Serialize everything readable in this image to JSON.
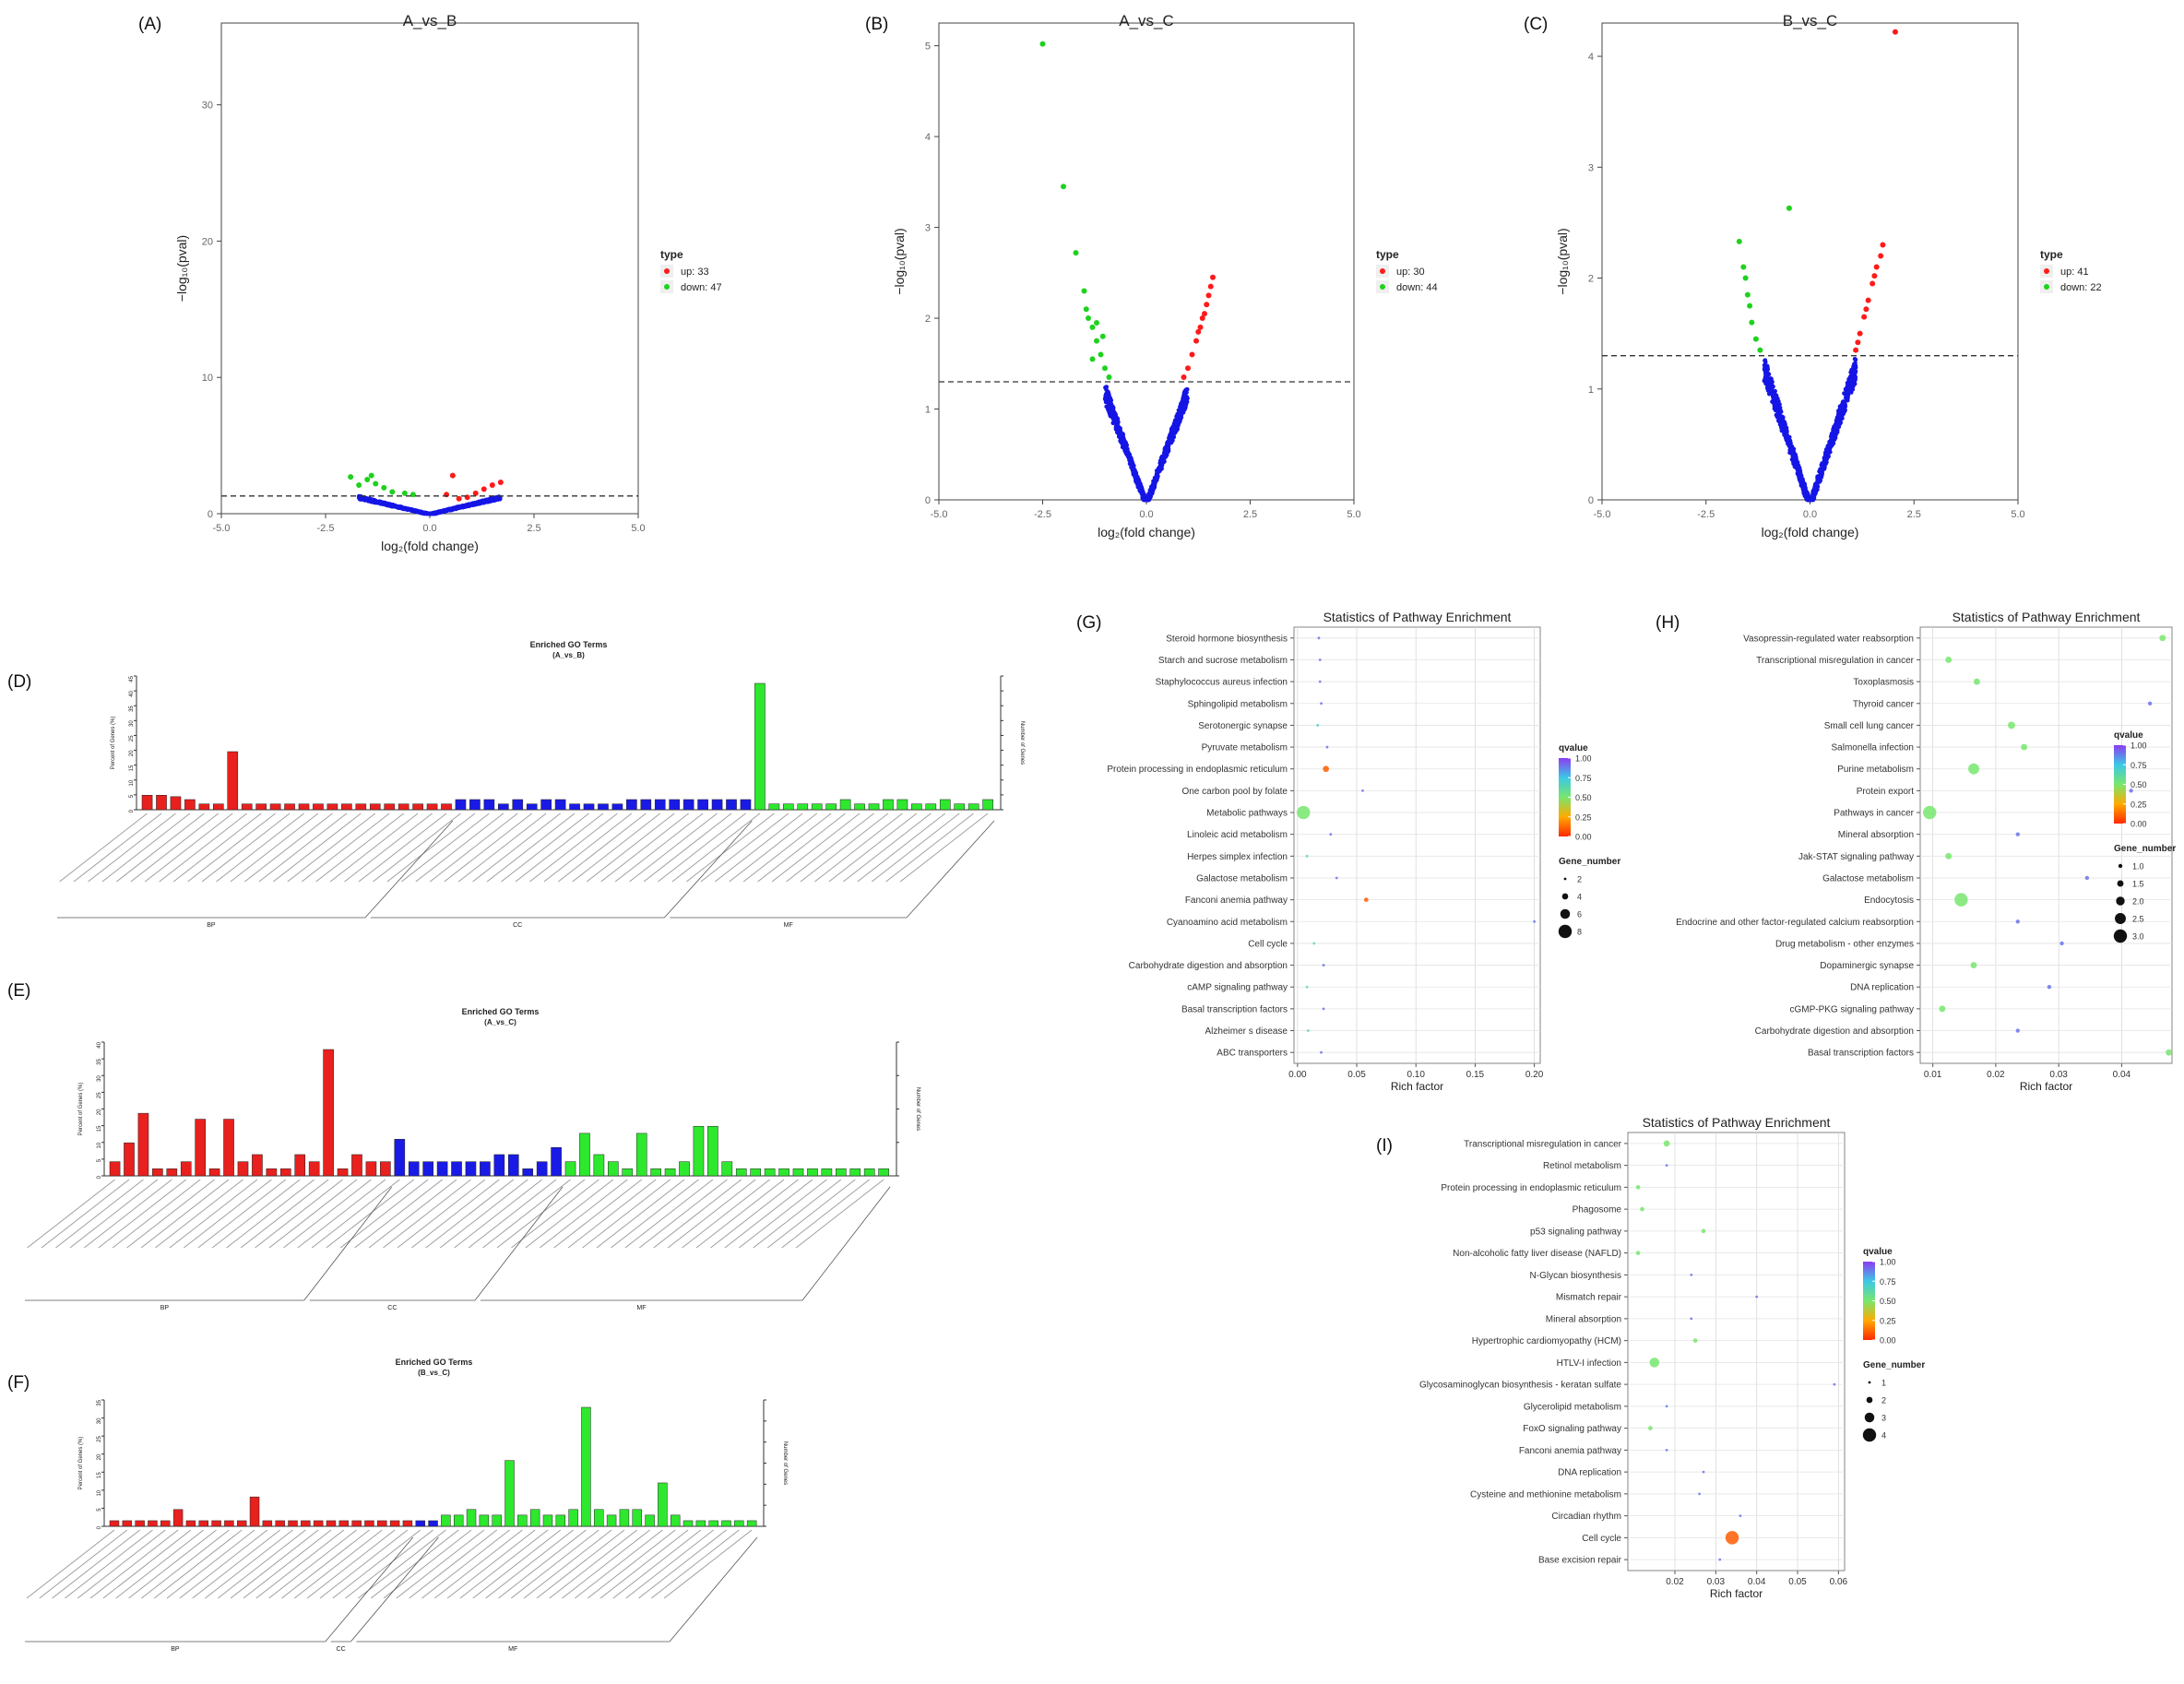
{
  "colors": {
    "up": "#ff1a1a",
    "down": "#1ed21e",
    "nosig": "#1515e6",
    "bp": "#e8201e",
    "cc": "#1a1ae6",
    "mf": "#2ee82e",
    "q_low": "#ff2a00",
    "q_mid": "#33e08f",
    "q_high": "#8b3cf0"
  },
  "chart_data": [
    {
      "id": "A",
      "panel_label": "(A)",
      "type": "scatter",
      "title": "A_vs_B",
      "xlabel": "log₂(fold change)",
      "ylabel": "−log₁₀(pval)",
      "xlim": [
        -5,
        5
      ],
      "ylim": [
        0,
        36
      ],
      "xticks": [
        "-5.0",
        "-2.5",
        "0.0",
        "2.5",
        "5.0"
      ],
      "yticks": [
        "0",
        "10",
        "20",
        "30"
      ],
      "threshold": 1.3,
      "legend": {
        "title": "type",
        "items": [
          "up: 33",
          "down: 47"
        ]
      },
      "up_points": [
        [
          0.4,
          1.4
        ],
        [
          0.7,
          1.1
        ],
        [
          0.9,
          1.2
        ],
        [
          1.1,
          1.5
        ],
        [
          1.3,
          1.8
        ],
        [
          1.5,
          2.1
        ],
        [
          1.7,
          2.3
        ],
        [
          0.55,
          2.8
        ]
      ],
      "down_points": [
        [
          -1.9,
          2.7
        ],
        [
          -1.5,
          2.5
        ],
        [
          -1.3,
          2.2
        ],
        [
          -1.1,
          1.9
        ],
        [
          -0.9,
          1.6
        ],
        [
          -0.6,
          1.5
        ],
        [
          -0.4,
          1.4
        ],
        [
          -1.4,
          2.8
        ],
        [
          -1.7,
          2.1
        ]
      ],
      "vshape": {
        "xmax": 1.7,
        "ymax": 1.3
      }
    },
    {
      "id": "B",
      "panel_label": "(B)",
      "type": "scatter",
      "title": "A_vs_C",
      "xlabel": "log₂(fold change)",
      "ylabel": "−log₁₀(pval)",
      "xlim": [
        -5,
        5
      ],
      "ylim": [
        0,
        5.25
      ],
      "xticks": [
        "-5.0",
        "-2.5",
        "0.0",
        "2.5",
        "5.0"
      ],
      "yticks": [
        "0",
        "1",
        "2",
        "3",
        "4",
        "5"
      ],
      "threshold": 1.3,
      "legend": {
        "title": "type",
        "items": [
          "up: 30",
          "down: 44"
        ]
      },
      "up_points": [
        [
          0.9,
          1.35
        ],
        [
          1.0,
          1.45
        ],
        [
          1.1,
          1.6
        ],
        [
          1.2,
          1.75
        ],
        [
          1.3,
          1.9
        ],
        [
          1.35,
          2.0
        ],
        [
          1.45,
          2.15
        ],
        [
          1.5,
          2.25
        ],
        [
          1.55,
          2.35
        ],
        [
          1.6,
          2.45
        ],
        [
          1.25,
          1.85
        ],
        [
          1.4,
          2.05
        ]
      ],
      "down_points": [
        [
          -2.5,
          5.02
        ],
        [
          -2.0,
          3.45
        ],
        [
          -1.7,
          2.72
        ],
        [
          -1.5,
          2.3
        ],
        [
          -1.45,
          2.1
        ],
        [
          -1.4,
          2.0
        ],
        [
          -1.3,
          1.9
        ],
        [
          -1.2,
          1.75
        ],
        [
          -1.1,
          1.6
        ],
        [
          -1.0,
          1.45
        ],
        [
          -0.9,
          1.35
        ],
        [
          -1.2,
          1.95
        ],
        [
          -1.05,
          1.8
        ],
        [
          -1.3,
          1.55
        ]
      ],
      "vshape": {
        "xmax": 1.0,
        "ymax": 1.3
      }
    },
    {
      "id": "C",
      "panel_label": "(C)",
      "type": "scatter",
      "title": "B_vs_C",
      "xlabel": "log₂(fold change)",
      "ylabel": "−log₁₀(pval)",
      "xlim": [
        -5,
        5
      ],
      "ylim": [
        0,
        4.3
      ],
      "xticks": [
        "-5.0",
        "-2.5",
        "0.0",
        "2.5",
        "5.0"
      ],
      "yticks": [
        "0",
        "1",
        "2",
        "3",
        "4"
      ],
      "threshold": 1.3,
      "legend": {
        "title": "type",
        "items": [
          "up: 41",
          "down: 22"
        ]
      },
      "up_points": [
        [
          2.05,
          4.22
        ],
        [
          1.1,
          1.35
        ],
        [
          1.2,
          1.5
        ],
        [
          1.3,
          1.65
        ],
        [
          1.4,
          1.8
        ],
        [
          1.5,
          1.95
        ],
        [
          1.6,
          2.1
        ],
        [
          1.7,
          2.2
        ],
        [
          1.75,
          2.3
        ],
        [
          1.15,
          1.42
        ],
        [
          1.35,
          1.72
        ],
        [
          1.55,
          2.02
        ]
      ],
      "down_points": [
        [
          -0.5,
          2.63
        ],
        [
          -1.7,
          2.33
        ],
        [
          -1.6,
          2.1
        ],
        [
          -1.55,
          2.0
        ],
        [
          -1.5,
          1.85
        ],
        [
          -1.45,
          1.75
        ],
        [
          -1.4,
          1.6
        ],
        [
          -1.3,
          1.45
        ],
        [
          -1.2,
          1.35
        ]
      ],
      "vshape": {
        "xmax": 1.1,
        "ymax": 1.3
      }
    },
    {
      "id": "D",
      "panel_label": "(D)",
      "type": "bar",
      "title": "Enriched GO Terms",
      "subtitle": "(A_vs_B)",
      "ylabel": "Percent of Genes (%)",
      "ylabel_right": "Number of Genes",
      "yticks": [
        "0",
        "5",
        "10",
        "15",
        "20",
        "25",
        "30",
        "35",
        "40",
        "45"
      ],
      "values": [
        1,
        1,
        0.9,
        0.7,
        0.4,
        0.4,
        4,
        0.4,
        0.4,
        0.4,
        0.4,
        0.4,
        0.4,
        0.4,
        0.4,
        0.4,
        0.4,
        0.4,
        0.4,
        0.4,
        0.4,
        0.4,
        0.7,
        0.7,
        0.7,
        0.4,
        0.7,
        0.4,
        0.7,
        0.7,
        0.4,
        0.4,
        0.4,
        0.4,
        0.7,
        0.7,
        0.7,
        0.7,
        0.7,
        0.7,
        0.7,
        0.7,
        0.7,
        8.7,
        0.4,
        0.4,
        0.4,
        0.4,
        0.4,
        0.7,
        0.4,
        0.4,
        0.7,
        0.7,
        0.4,
        0.4,
        0.7,
        0.4,
        0.4,
        0.7
      ],
      "groups": [
        {
          "name": "BP",
          "count": 22
        },
        {
          "name": "CC",
          "count": 21
        },
        {
          "name": "MF",
          "count": 17
        }
      ]
    },
    {
      "id": "E",
      "panel_label": "(E)",
      "type": "bar",
      "title": "Enriched GO Terms",
      "subtitle": "(A_vs_C)",
      "ylabel": "Percent of Genes (%)",
      "ylabel_right": "Number of Genes",
      "yticks": [
        "0",
        "5",
        "10",
        "15",
        "20",
        "25",
        "30",
        "35",
        "40"
      ],
      "values": [
        1.2,
        2.8,
        5.3,
        0.6,
        0.6,
        1.2,
        4.8,
        0.6,
        4.8,
        1.2,
        1.8,
        0.6,
        0.6,
        1.8,
        1.2,
        10.7,
        0.6,
        1.8,
        1.2,
        1.2,
        3.1,
        1.2,
        1.2,
        1.2,
        1.2,
        1.2,
        1.2,
        1.8,
        1.8,
        0.6,
        1.2,
        2.4,
        1.2,
        3.6,
        1.8,
        1.2,
        0.6,
        3.6,
        0.6,
        0.6,
        1.2,
        4.2,
        4.2,
        1.2,
        0.6,
        0.6,
        0.6,
        0.6,
        0.6,
        0.6,
        0.6,
        0.6,
        0.6,
        0.6,
        0.6
      ],
      "groups": [
        {
          "name": "BP",
          "count": 20
        },
        {
          "name": "CC",
          "count": 12
        },
        {
          "name": "MF",
          "count": 23
        }
      ]
    },
    {
      "id": "F",
      "panel_label": "(F)",
      "type": "bar",
      "title": "Enriched GO Terms",
      "subtitle": "(B_vs_C)",
      "ylabel": "Percent of Genes (%)",
      "ylabel_right": "Number of Genes",
      "yticks": [
        "0",
        "5",
        "10",
        "15",
        "20",
        "25",
        "30",
        "35"
      ],
      "values": [
        0.4,
        0.4,
        0.4,
        0.4,
        0.4,
        1.2,
        0.4,
        0.4,
        0.4,
        0.4,
        0.4,
        2.1,
        0.4,
        0.4,
        0.4,
        0.4,
        0.4,
        0.4,
        0.4,
        0.4,
        0.4,
        0.4,
        0.4,
        0.4,
        0.4,
        0.4,
        0.8,
        0.8,
        1.2,
        0.8,
        0.8,
        4.7,
        0.8,
        1.2,
        0.8,
        0.8,
        1.2,
        8.5,
        1.2,
        0.8,
        1.2,
        1.2,
        0.8,
        3.1,
        0.8,
        0.4,
        0.4,
        0.4,
        0.4,
        0.4,
        0.4
      ],
      "groups": [
        {
          "name": "BP",
          "count": 24
        },
        {
          "name": "CC",
          "count": 2
        },
        {
          "name": "MF",
          "count": 25
        }
      ]
    },
    {
      "id": "G",
      "panel_label": "(G)",
      "type": "scatter",
      "title": "Statistics of Pathway Enrichment",
      "xlabel": "Rich factor",
      "xlim": [
        -0.003,
        0.205
      ],
      "xticks": [
        "0.00",
        "0.05",
        "0.10",
        "0.15",
        "0.20"
      ],
      "xtick_values": [
        0,
        0.05,
        0.1,
        0.15,
        0.2
      ],
      "terms": [
        "Steroid hormone biosynthesis",
        "Starch and sucrose metabolism",
        "Staphylococcus aureus infection",
        "Sphingolipid metabolism",
        "Serotonergic synapse",
        "Pyruvate metabolism",
        "Protein processing in endoplasmic reticulum",
        "One carbon pool by folate",
        "Metabolic pathways",
        "Linoleic acid metabolism",
        "Herpes simplex infection",
        "Galactose metabolism",
        "Fanconi anemia pathway",
        "Cyanoamino acid metabolism",
        "Cell cycle",
        "Carbohydrate digestion and absorption",
        "cAMP signaling pathway",
        "Basal transcription factors",
        "Alzheimer s disease",
        "ABC transporters"
      ],
      "x": [
        0.018,
        0.019,
        0.019,
        0.02,
        0.017,
        0.025,
        0.024,
        0.055,
        0.005,
        0.028,
        0.008,
        0.033,
        0.058,
        0.2,
        0.014,
        0.022,
        0.008,
        0.022,
        0.009,
        0.02
      ],
      "gene_number": [
        1,
        1,
        1,
        1,
        2,
        1,
        4,
        1,
        8,
        1,
        2,
        1,
        3,
        1,
        2,
        1,
        2,
        1,
        2,
        1
      ],
      "qvalue": [
        0.9,
        0.9,
        0.9,
        0.9,
        0.7,
        0.9,
        0.1,
        0.9,
        0.5,
        0.9,
        0.6,
        0.9,
        0.1,
        0.9,
        0.6,
        0.9,
        0.6,
        0.9,
        0.6,
        0.9
      ],
      "legend_q": {
        "title": "qvalue",
        "ticks": [
          "1.00",
          "0.75",
          "0.50",
          "0.25",
          "0.00"
        ],
        "tick_values": [
          1,
          0.75,
          0.5,
          0.25,
          0
        ]
      },
      "legend_size": {
        "title": "Gene_number",
        "labels": [
          "2",
          "4",
          "6",
          "8"
        ],
        "values": [
          2,
          4,
          6,
          8
        ]
      }
    },
    {
      "id": "H",
      "panel_label": "(H)",
      "type": "scatter",
      "title": "Statistics of Pathway Enrichment",
      "xlabel": "Rich factor",
      "xlim": [
        0.008,
        0.048
      ],
      "xticks": [
        "0.01",
        "0.02",
        "0.03",
        "0.04"
      ],
      "xtick_values": [
        0.01,
        0.02,
        0.03,
        0.04
      ],
      "terms": [
        "Vasopressin-regulated water reabsorption",
        "Transcriptional misregulation in cancer",
        "Toxoplasmosis",
        "Thyroid cancer",
        "Small cell lung cancer",
        "Salmonella infection",
        "Purine metabolism",
        "Protein export",
        "Pathways in cancer",
        "Mineral absorption",
        "Jak-STAT signaling pathway",
        "Galactose metabolism",
        "Endocytosis",
        "Endocrine and other factor-regulated calcium reabsorption",
        "Drug metabolism - other enzymes",
        "Dopaminergic synapse",
        "DNA replication",
        "cGMP-PKG signaling pathway",
        "Carbohydrate digestion and absorption",
        "Basal transcription factors"
      ],
      "x": [
        0.0465,
        0.0125,
        0.017,
        0.0445,
        0.0225,
        0.0245,
        0.0165,
        0.0415,
        0.0095,
        0.0235,
        0.0125,
        0.0345,
        0.0145,
        0.0235,
        0.0305,
        0.0165,
        0.0285,
        0.0115,
        0.0235,
        0.0475
      ],
      "gene_number": [
        1.5,
        1.5,
        1.5,
        1,
        1.7,
        1.5,
        2.5,
        1,
        3,
        1,
        1.5,
        1,
        3,
        1,
        1,
        1.5,
        1,
        1.5,
        1,
        1.5
      ],
      "qvalue": [
        0.5,
        0.5,
        0.5,
        0.9,
        0.5,
        0.5,
        0.5,
        0.9,
        0.5,
        0.9,
        0.5,
        0.9,
        0.5,
        0.9,
        0.9,
        0.5,
        0.9,
        0.5,
        0.9,
        0.5
      ],
      "legend_q": {
        "title": "qvalue",
        "ticks": [
          "1.00",
          "0.75",
          "0.50",
          "0.25",
          "0.00"
        ],
        "tick_values": [
          1,
          0.75,
          0.5,
          0.25,
          0
        ]
      },
      "legend_size": {
        "title": "Gene_number",
        "labels": [
          "1.0",
          "1.5",
          "2.0",
          "2.5",
          "3.0"
        ],
        "values": [
          1,
          1.5,
          2,
          2.5,
          3
        ]
      }
    },
    {
      "id": "I",
      "panel_label": "(I)",
      "type": "scatter",
      "title": "Statistics of Pathway Enrichment",
      "xlabel": "Rich factor",
      "xlim": [
        0.0085,
        0.0615
      ],
      "xticks": [
        "0.02",
        "0.03",
        "0.04",
        "0.05",
        "0.06"
      ],
      "xtick_values": [
        0.02,
        0.03,
        0.04,
        0.05,
        0.06
      ],
      "terms": [
        "Transcriptional misregulation in cancer",
        "Retinol metabolism",
        "Protein processing in endoplasmic reticulum",
        "Phagosome",
        "p53 signaling pathway",
        "Non-alcoholic fatty liver disease (NAFLD)",
        "N-Glycan biosynthesis",
        "Mismatch repair",
        "Mineral absorption",
        "Hypertrophic cardiomyopathy (HCM)",
        "HTLV-I infection",
        "Glycosaminoglycan biosynthesis - keratan sulfate",
        "Glycerolipid metabolism",
        "FoxO signaling pathway",
        "Fanconi anemia pathway",
        "DNA replication",
        "Cysteine and methionine metabolism",
        "Circadian rhythm",
        "Cell cycle",
        "Base excision repair"
      ],
      "x": [
        0.018,
        0.018,
        0.011,
        0.012,
        0.027,
        0.011,
        0.024,
        0.04,
        0.024,
        0.025,
        0.015,
        0.059,
        0.018,
        0.014,
        0.018,
        0.027,
        0.026,
        0.036,
        0.034,
        0.031
      ],
      "gene_number": [
        2,
        1,
        1.5,
        1.5,
        1.5,
        1.5,
        1,
        1,
        1,
        1.5,
        3,
        1,
        1,
        1.5,
        1,
        1,
        1,
        1,
        4,
        1
      ],
      "qvalue": [
        0.5,
        0.9,
        0.5,
        0.5,
        0.5,
        0.5,
        0.9,
        0.9,
        0.9,
        0.5,
        0.5,
        0.9,
        0.9,
        0.5,
        0.9,
        0.9,
        0.9,
        0.9,
        0.1,
        0.9
      ],
      "legend_q": {
        "title": "qvalue",
        "ticks": [
          "1.00",
          "0.75",
          "0.50",
          "0.25",
          "0.00"
        ],
        "tick_values": [
          1,
          0.75,
          0.5,
          0.25,
          0
        ]
      },
      "legend_size": {
        "title": "Gene_number",
        "labels": [
          "1",
          "2",
          "3",
          "4"
        ],
        "values": [
          1,
          2,
          3,
          4
        ]
      }
    }
  ]
}
